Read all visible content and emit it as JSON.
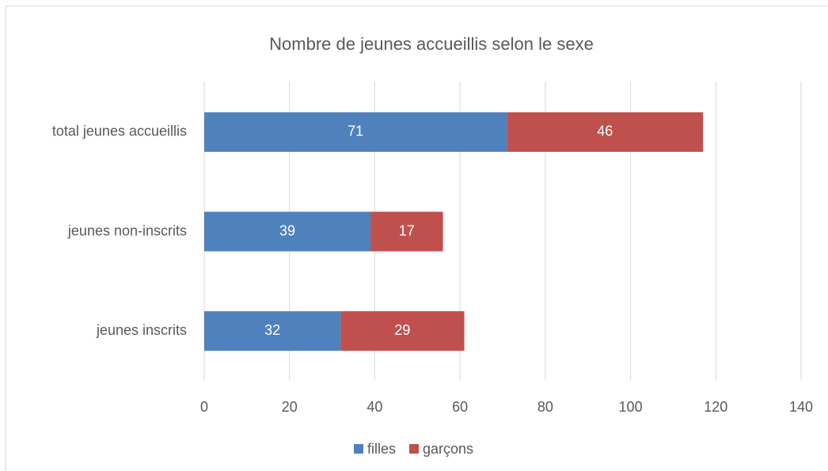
{
  "chart_data": {
    "type": "stacked_bar_horizontal",
    "title": "Nombre de jeunes accueillis selon le sexe",
    "categories": [
      "total jeunes accueillis",
      "jeunes non-inscrits",
      "jeunes inscrits"
    ],
    "series": [
      {
        "name": "filles",
        "color": "#4f81bd",
        "values": [
          71,
          39,
          32
        ]
      },
      {
        "name": "garçons",
        "color": "#c0504d",
        "values": [
          46,
          17,
          29
        ]
      }
    ],
    "xlim": [
      0,
      140
    ],
    "xticks": [
      0,
      20,
      40,
      60,
      80,
      100,
      120,
      140
    ],
    "grid": true,
    "legend": "bottom"
  }
}
